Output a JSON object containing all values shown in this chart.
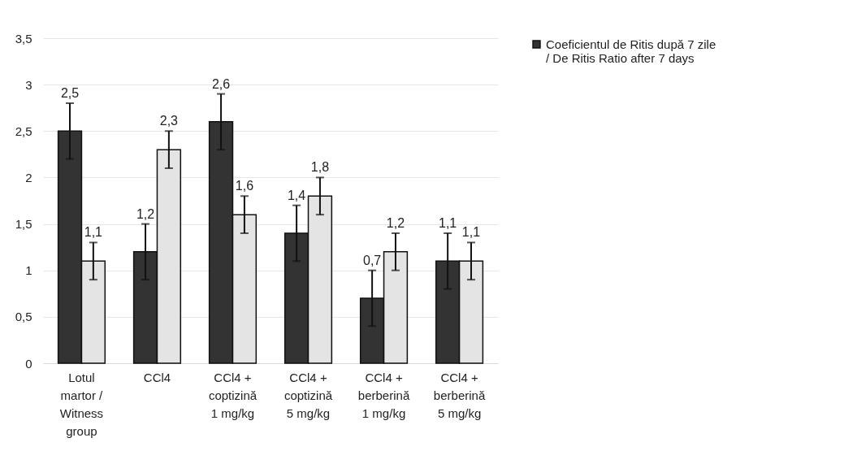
{
  "chart_data": {
    "type": "bar",
    "categories": [
      "Lotul martor / Witness group",
      "CCl4",
      "CCl4 + coptizină 1 mg/kg",
      "CCl4 + coptizină 5 mg/kg",
      "CCl4 + berberină 1 mg/kg",
      "CCl4 + berberină 5 mg/kg"
    ],
    "series": [
      {
        "name": "Coeficientul de Ritis după 7 zile / De Ritis Ratio after 7 days",
        "color": "#333333",
        "values": [
          2.5,
          1.2,
          2.6,
          1.4,
          0.7,
          1.1
        ],
        "errors": [
          0.3,
          0.3,
          0.3,
          0.3,
          0.3,
          0.3
        ],
        "value_labels": [
          "2,5",
          "1,2",
          "2,6",
          "1,4",
          "0,7",
          "1,1"
        ]
      },
      {
        "color": "#e4e4e4",
        "values": [
          1.1,
          2.3,
          1.6,
          1.8,
          1.2,
          1.1
        ],
        "errors": [
          0.2,
          0.2,
          0.2,
          0.2,
          0.2,
          0.2
        ],
        "value_labels": [
          "1,1",
          "2,3",
          "1,6",
          "1,8",
          "1,2",
          "1,1"
        ]
      }
    ],
    "ylim": [
      0,
      3.5
    ],
    "yticks": [
      0,
      {
        "value": 0.5,
        "label": "0,5"
      },
      1,
      {
        "value": 1.5,
        "label": "1,5"
      },
      2,
      {
        "value": 2.5,
        "label": "2,5"
      },
      3,
      {
        "value": 3.5,
        "label": "3,5"
      }
    ],
    "grid": "y",
    "legend": "right"
  }
}
